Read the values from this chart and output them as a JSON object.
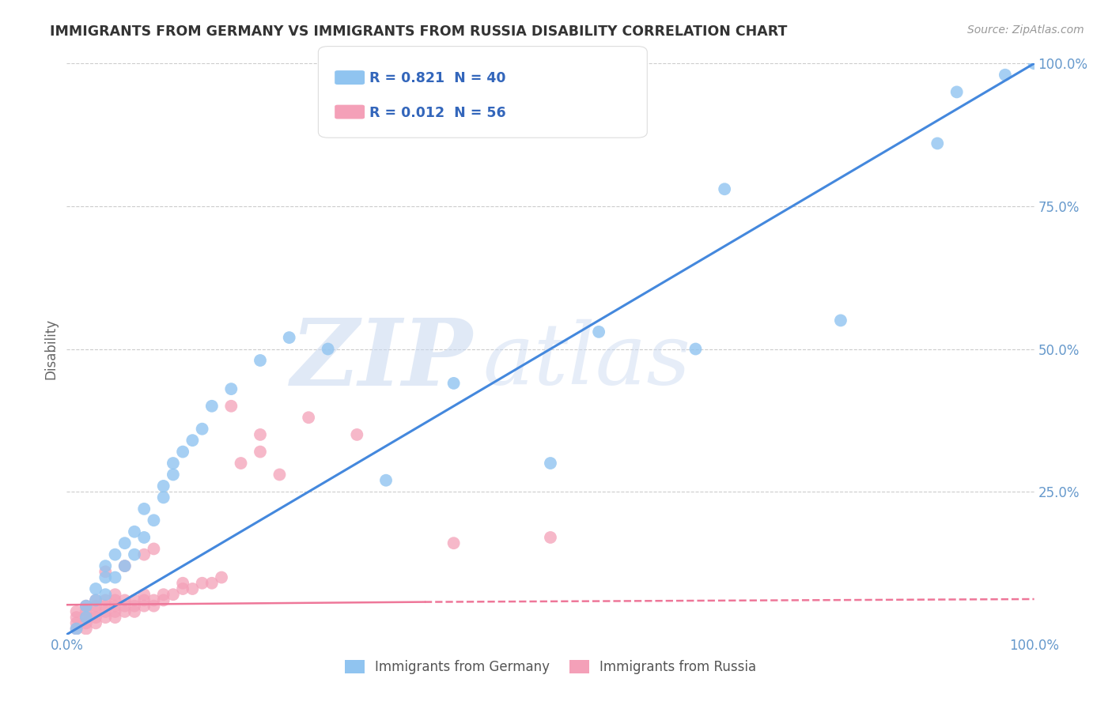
{
  "title": "IMMIGRANTS FROM GERMANY VS IMMIGRANTS FROM RUSSIA DISABILITY CORRELATION CHART",
  "source": "Source: ZipAtlas.com",
  "ylabel": "Disability",
  "xlabel": "",
  "legend_label1": "Immigrants from Germany",
  "legend_label2": "Immigrants from Russia",
  "R1": "0.821",
  "N1": "40",
  "R2": "0.012",
  "N2": "56",
  "color_germany": "#90C4F0",
  "color_russia": "#F4A0B8",
  "trendline_germany": "#4488DD",
  "trendline_russia": "#EE7799",
  "background_color": "#FFFFFF",
  "grid_color": "#CCCCCC",
  "title_color": "#333333",
  "tick_color": "#6699CC",
  "xlim": [
    0,
    1
  ],
  "ylim": [
    0,
    1
  ],
  "ytick_values": [
    0.25,
    0.5,
    0.75,
    1.0
  ],
  "ytick_labels": [
    "25.0%",
    "50.0%",
    "75.0%",
    "100.0%"
  ],
  "germany_x": [
    0.01,
    0.02,
    0.02,
    0.03,
    0.03,
    0.04,
    0.04,
    0.04,
    0.05,
    0.05,
    0.06,
    0.06,
    0.07,
    0.07,
    0.08,
    0.08,
    0.09,
    0.1,
    0.1,
    0.11,
    0.11,
    0.12,
    0.13,
    0.14,
    0.15,
    0.17,
    0.2,
    0.23,
    0.27,
    0.33,
    0.4,
    0.5,
    0.55,
    0.65,
    0.68,
    0.8,
    0.9,
    0.92,
    0.97,
    1.0
  ],
  "germany_y": [
    0.01,
    0.03,
    0.05,
    0.06,
    0.08,
    0.07,
    0.1,
    0.12,
    0.1,
    0.14,
    0.12,
    0.16,
    0.14,
    0.18,
    0.17,
    0.22,
    0.2,
    0.24,
    0.26,
    0.28,
    0.3,
    0.32,
    0.34,
    0.36,
    0.4,
    0.43,
    0.48,
    0.52,
    0.5,
    0.27,
    0.44,
    0.3,
    0.53,
    0.5,
    0.78,
    0.55,
    0.86,
    0.95,
    0.98,
    1.0
  ],
  "russia_x": [
    0.01,
    0.01,
    0.01,
    0.01,
    0.02,
    0.02,
    0.02,
    0.02,
    0.02,
    0.03,
    0.03,
    0.03,
    0.03,
    0.03,
    0.04,
    0.04,
    0.04,
    0.04,
    0.05,
    0.05,
    0.05,
    0.05,
    0.05,
    0.06,
    0.06,
    0.06,
    0.07,
    0.07,
    0.07,
    0.08,
    0.08,
    0.08,
    0.09,
    0.09,
    0.1,
    0.1,
    0.11,
    0.12,
    0.12,
    0.13,
    0.14,
    0.15,
    0.16,
    0.18,
    0.2,
    0.2,
    0.22,
    0.25,
    0.3,
    0.4,
    0.5,
    0.17,
    0.08,
    0.06,
    0.09,
    0.04
  ],
  "russia_y": [
    0.01,
    0.02,
    0.03,
    0.04,
    0.01,
    0.02,
    0.03,
    0.04,
    0.05,
    0.02,
    0.03,
    0.04,
    0.05,
    0.06,
    0.03,
    0.04,
    0.05,
    0.06,
    0.03,
    0.04,
    0.05,
    0.06,
    0.07,
    0.04,
    0.05,
    0.06,
    0.04,
    0.05,
    0.06,
    0.05,
    0.06,
    0.07,
    0.05,
    0.06,
    0.06,
    0.07,
    0.07,
    0.08,
    0.09,
    0.08,
    0.09,
    0.09,
    0.1,
    0.3,
    0.32,
    0.35,
    0.28,
    0.38,
    0.35,
    0.16,
    0.17,
    0.4,
    0.14,
    0.12,
    0.15,
    0.11
  ],
  "watermark_zip_color": "#C8D8F0",
  "watermark_atlas_color": "#C8D8F0",
  "watermark_zip_fontsize": 80,
  "watermark_atlas_fontsize": 80
}
